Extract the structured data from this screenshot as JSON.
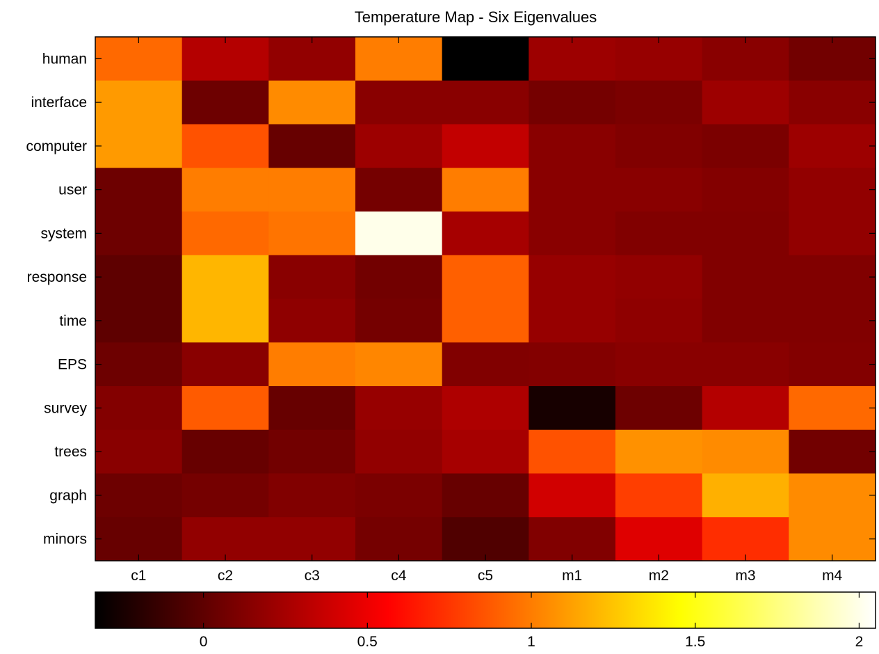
{
  "chart_data": {
    "type": "heatmap",
    "title": "Temperature Map - Six Eigenvalues",
    "xlabel": "",
    "ylabel": "",
    "colormap": "hot",
    "x_categories": [
      "c1",
      "c2",
      "c3",
      "c4",
      "c5",
      "m1",
      "m2",
      "m3",
      "m4"
    ],
    "y_categories": [
      "human",
      "interface",
      "computer",
      "user",
      "system",
      "response",
      "time",
      "EPS",
      "survey",
      "trees",
      "graph",
      "minors"
    ],
    "values": [
      [
        0.93,
        0.3,
        0.18,
        1.0,
        -0.4,
        0.22,
        0.2,
        0.15,
        0.07
      ],
      [
        1.1,
        0.05,
        1.05,
        0.15,
        0.15,
        0.08,
        0.1,
        0.22,
        0.15
      ],
      [
        1.1,
        0.85,
        0.03,
        0.22,
        0.35,
        0.15,
        0.12,
        0.1,
        0.22
      ],
      [
        0.05,
        1.0,
        1.0,
        0.08,
        1.0,
        0.15,
        0.15,
        0.13,
        0.18
      ],
      [
        0.05,
        0.93,
        0.97,
        2.0,
        0.25,
        0.15,
        0.12,
        0.12,
        0.18
      ],
      [
        0.0,
        1.2,
        0.15,
        0.07,
        0.9,
        0.2,
        0.18,
        0.12,
        0.12
      ],
      [
        0.0,
        1.2,
        0.17,
        0.08,
        0.9,
        0.2,
        0.17,
        0.12,
        0.12
      ],
      [
        0.05,
        0.15,
        1.0,
        1.03,
        0.12,
        0.13,
        0.15,
        0.15,
        0.13
      ],
      [
        0.13,
        0.88,
        0.03,
        0.2,
        0.28,
        -0.25,
        0.05,
        0.3,
        0.93
      ],
      [
        0.15,
        0.03,
        0.07,
        0.18,
        0.25,
        0.85,
        1.07,
        1.05,
        0.07
      ],
      [
        0.05,
        0.08,
        0.12,
        0.1,
        0.03,
        0.4,
        0.78,
        1.18,
        1.05
      ],
      [
        0.03,
        0.18,
        0.18,
        0.08,
        -0.05,
        0.12,
        0.45,
        0.72,
        1.05
      ]
    ],
    "colorbar": {
      "range": [
        -0.33,
        2.05
      ],
      "ticks": [
        0,
        0.5,
        1,
        1.5,
        2
      ],
      "tick_labels": [
        "0",
        "0.5",
        "1",
        "1.5",
        "2"
      ]
    },
    "grid": false,
    "legend": "colorbar-bottom"
  }
}
